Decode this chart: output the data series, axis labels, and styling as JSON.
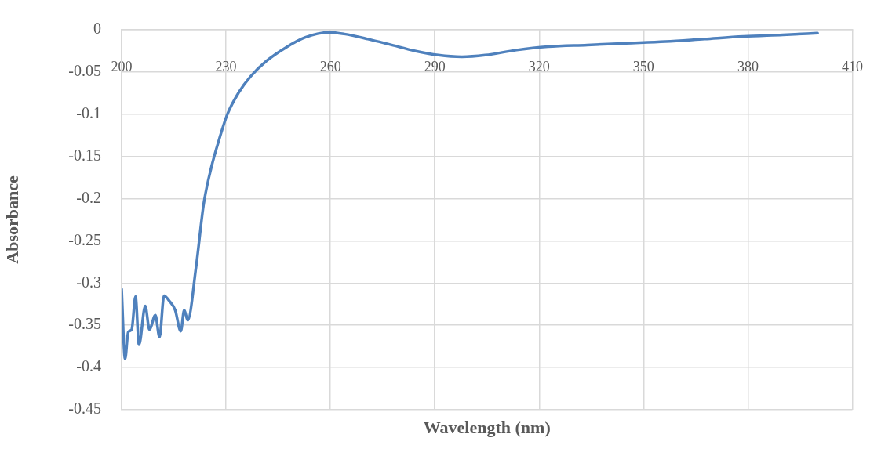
{
  "chart_data": {
    "type": "line",
    "xlabel": "Wavelength (nm)",
    "ylabel": "Absorbance",
    "xlim": [
      200,
      410
    ],
    "xticks": [
      200,
      230,
      260,
      290,
      320,
      350,
      380,
      410
    ],
    "ylim": [
      -0.45,
      0
    ],
    "yticks": [
      -0.45,
      -0.4,
      -0.35,
      -0.3,
      -0.25,
      -0.2,
      -0.15,
      -0.1,
      -0.05,
      0
    ],
    "grid": true,
    "legend": false,
    "marker": "none",
    "line_style": "solid",
    "series": [
      {
        "color": "#4f81bd",
        "x": [
          200,
          201,
          201.9,
          202.9,
          204,
          205,
          206.8,
          208,
          209.7,
          210.9,
          212.2,
          213.7,
          215.4,
          217,
          218,
          219,
          221.4,
          223.6,
          225.9,
          228.1,
          230.3,
          233.7,
          237.1,
          241.6,
          247.2,
          252.8,
          259.6,
          264,
          270.8,
          277.6,
          284.3,
          291,
          297.8,
          304.5,
          313.5,
          322.5,
          333.8,
          345,
          356.3,
          367.5,
          378.7,
          390,
          400
        ],
        "values": [
          -0.307,
          -0.39,
          -0.358,
          -0.355,
          -0.316,
          -0.373,
          -0.327,
          -0.355,
          -0.338,
          -0.364,
          -0.315,
          -0.321,
          -0.332,
          -0.357,
          -0.332,
          -0.344,
          -0.281,
          -0.206,
          -0.161,
          -0.129,
          -0.101,
          -0.074,
          -0.055,
          -0.037,
          -0.021,
          -0.009,
          -0.003,
          -0.005,
          -0.011,
          -0.018,
          -0.025,
          -0.03,
          -0.032,
          -0.03,
          -0.024,
          -0.02,
          -0.018,
          -0.016,
          -0.014,
          -0.011,
          -0.008,
          -0.006,
          -0.004
        ]
      }
    ]
  }
}
